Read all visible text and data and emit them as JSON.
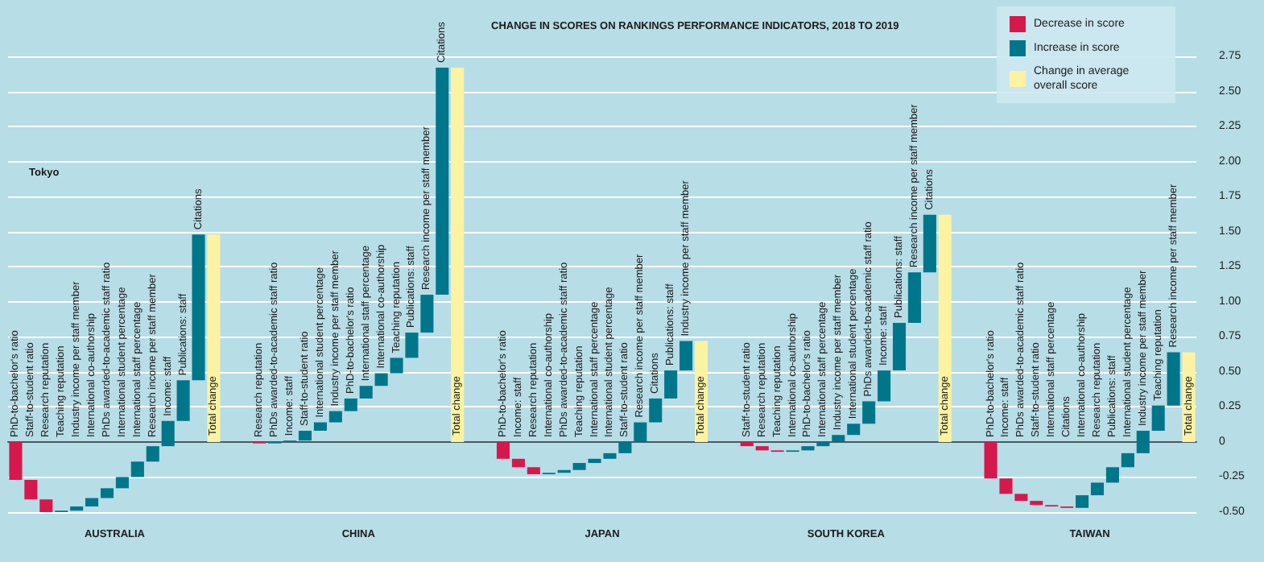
{
  "chart_data": {
    "type": "bar",
    "title": "CHANGE IN SCORES ON RANKINGS PERFORMANCE INDICATORS, 2018 TO 2019",
    "categories": [
      "PhD-to-bachelor's ratio",
      "Staff-to-student ratio",
      "Research reputation",
      "Teaching reputation",
      "Industry income per staff member",
      "International co-authorship",
      "PhDs awarded-to-academic staff ratio",
      "International student percentage",
      "International staff percentage",
      "Research income per staff member",
      "Income: staff",
      "Publications: staff",
      "Citations",
      "Total change",
      null,
      null,
      "Research reputation",
      "PhDs awarded-to-academic staff ratio",
      "Income: staff",
      "Staff-to-student ratio",
      "International student percentage",
      "Industry income per staff member",
      "PhD-to-bachelor's ratio",
      "International staff percentage",
      "International co-authorship",
      "Teaching reputation",
      "Publications: staff",
      "Research income per staff member",
      "Citations",
      "Total change",
      null,
      null,
      "PhD-to-bachelor's ratio",
      "Income: staff",
      "Research reputation",
      "International co-authorship",
      "PhDs awarded-to-academic staff ratio",
      "Teaching reputation",
      "International staff percentage",
      "International student percentage",
      "Staff-to-student ratio",
      "Research income per staff member",
      "Citations",
      "Publications: staff",
      "Industry income per staff member",
      "Total change",
      null,
      null,
      "Staff-to-student ratio",
      "Research reputation",
      "Teaching reputation",
      "International co-authorship",
      "PhD-to-bachelor's ratio",
      "International staff percentage",
      "Industry income per staff member",
      "International student percentage",
      "PhDs awarded-to-academic staff ratio",
      "Income: staff",
      "Publications: staff",
      "Research income per staff member",
      "Citations",
      "Total change",
      null,
      null,
      "PhD-to-bachelor's ratio",
      "Income: staff",
      "PhDs awarded-to-academic staff ratio",
      "Staff-to-student ratio",
      "International staff percentage",
      "Citations",
      "International co-authorship",
      "Research reputation",
      "Publications: staff",
      "International student percentage",
      "Industry income per staff member",
      "Teaching reputation",
      "Research income per staff member",
      "Total change"
    ],
    "series": [
      {
        "name": "Decrease in score",
        "color": "#d7184c",
        "base": [
          0,
          -0.27,
          -0.41,
          null,
          null,
          null,
          null,
          null,
          null,
          null,
          null,
          null,
          null,
          null,
          null,
          null,
          0,
          null,
          null,
          null,
          null,
          null,
          null,
          null,
          null,
          null,
          null,
          null,
          null,
          null,
          null,
          null,
          0,
          -0.12,
          -0.18,
          null,
          null,
          null,
          null,
          null,
          null,
          null,
          null,
          null,
          null,
          null,
          null,
          null,
          0,
          -0.03,
          -0.06,
          null,
          null,
          null,
          null,
          null,
          null,
          null,
          null,
          null,
          null,
          null,
          null,
          null,
          0,
          -0.26,
          -0.37,
          -0.42,
          -0.45,
          -0.46,
          null,
          null,
          null,
          null,
          null,
          null,
          null,
          null
        ],
        "values": [
          -0.27,
          -0.14,
          -0.09,
          null,
          null,
          null,
          null,
          null,
          null,
          null,
          null,
          null,
          null,
          null,
          null,
          null,
          -0.01,
          null,
          null,
          null,
          null,
          null,
          null,
          null,
          null,
          null,
          null,
          null,
          null,
          null,
          null,
          null,
          -0.12,
          -0.06,
          -0.05,
          null,
          null,
          null,
          null,
          null,
          null,
          null,
          null,
          null,
          null,
          null,
          null,
          null,
          -0.03,
          -0.03,
          -0.01,
          null,
          null,
          null,
          null,
          null,
          null,
          null,
          null,
          null,
          null,
          null,
          null,
          null,
          -0.26,
          -0.11,
          -0.05,
          -0.03,
          -0.01,
          -0.01,
          null,
          null,
          null,
          null,
          null,
          null,
          null,
          null
        ]
      },
      {
        "name": "Increase in score",
        "color": "#00768a",
        "base": [
          null,
          null,
          null,
          -0.5,
          -0.49,
          -0.46,
          -0.4,
          -0.33,
          -0.25,
          -0.14,
          -0.03,
          0.15,
          0.44,
          null,
          null,
          null,
          null,
          -0.01,
          0,
          0.01,
          0.08,
          0.14,
          0.22,
          0.31,
          0.4,
          0.49,
          0.6,
          0.78,
          1.05,
          null,
          null,
          null,
          null,
          null,
          null,
          -0.23,
          -0.22,
          -0.2,
          -0.15,
          -0.12,
          -0.08,
          0,
          0.14,
          0.31,
          0.51,
          null,
          null,
          null,
          null,
          null,
          null,
          -0.07,
          -0.06,
          -0.03,
          0,
          0.05,
          0.13,
          0.29,
          0.51,
          0.85,
          1.21,
          null,
          null,
          null,
          null,
          null,
          null,
          null,
          null,
          null,
          -0.47,
          -0.38,
          -0.29,
          -0.18,
          -0.08,
          0.08,
          0.26,
          null
        ],
        "values": [
          null,
          null,
          null,
          0.01,
          0.03,
          0.06,
          0.07,
          0.08,
          0.11,
          0.11,
          0.18,
          0.29,
          1.04,
          null,
          null,
          null,
          null,
          0.01,
          0.01,
          0.07,
          0.06,
          0.08,
          0.09,
          0.09,
          0.09,
          0.11,
          0.18,
          0.27,
          1.62,
          null,
          null,
          null,
          null,
          null,
          null,
          0.01,
          0.02,
          0.05,
          0.03,
          0.04,
          0.08,
          0.14,
          0.17,
          0.2,
          0.21,
          null,
          null,
          null,
          null,
          null,
          null,
          0.01,
          0.03,
          0.03,
          0.05,
          0.08,
          0.16,
          0.22,
          0.34,
          0.36,
          0.41,
          null,
          null,
          null,
          null,
          null,
          null,
          null,
          null,
          null,
          0.09,
          0.09,
          0.11,
          0.1,
          0.16,
          0.18,
          0.38,
          null
        ]
      },
      {
        "name": "Change in average overall score",
        "color": "#fbf3a2",
        "base": [
          null,
          null,
          null,
          null,
          null,
          null,
          null,
          null,
          null,
          null,
          null,
          null,
          null,
          0,
          null,
          null,
          null,
          null,
          null,
          null,
          null,
          null,
          null,
          null,
          null,
          null,
          null,
          null,
          null,
          0,
          null,
          null,
          null,
          null,
          null,
          null,
          null,
          null,
          null,
          null,
          null,
          null,
          null,
          null,
          null,
          0,
          null,
          null,
          null,
          null,
          null,
          null,
          null,
          null,
          null,
          null,
          null,
          null,
          null,
          null,
          null,
          0,
          null,
          null,
          null,
          null,
          null,
          null,
          null,
          null,
          null,
          null,
          null,
          null,
          null,
          null,
          null,
          0
        ],
        "values": [
          null,
          null,
          null,
          null,
          null,
          null,
          null,
          null,
          null,
          null,
          null,
          null,
          null,
          1.48,
          null,
          null,
          null,
          null,
          null,
          null,
          null,
          null,
          null,
          null,
          null,
          null,
          null,
          null,
          null,
          2.67,
          null,
          null,
          null,
          null,
          null,
          null,
          null,
          null,
          null,
          null,
          null,
          null,
          null,
          null,
          null,
          0.72,
          null,
          null,
          null,
          null,
          null,
          null,
          null,
          null,
          null,
          null,
          null,
          null,
          null,
          null,
          null,
          1.62,
          null,
          null,
          null,
          null,
          null,
          null,
          null,
          null,
          null,
          null,
          null,
          null,
          null,
          null,
          null,
          0.64
        ]
      }
    ],
    "ylim": [
      -0.5,
      2.75
    ],
    "yticks": [
      {
        "value": -0.5,
        "label": "-0.50"
      },
      {
        "value": -0.25,
        "label": "-0.25"
      },
      0,
      {
        "value": 0.25,
        "label": "0.25"
      },
      {
        "value": 0.5,
        "label": "0.50"
      },
      {
        "value": 0.75,
        "label": "0.75"
      },
      {
        "value": 1,
        "label": "1.00"
      },
      {
        "value": 1.25,
        "label": "1.25"
      },
      {
        "value": 1.5,
        "label": "1.50"
      },
      {
        "value": 1.75,
        "label": "1.75"
      },
      {
        "value": 2,
        "label": "2.00"
      },
      {
        "value": 2.25,
        "label": "2.25"
      },
      {
        "value": 2.5,
        "label": "2.50"
      },
      {
        "value": 2.75,
        "label": "2.75"
      }
    ],
    "grid": "y",
    "legend": "top right",
    "annotations": [
      "Tokyo",
      "AUSTRALIA",
      "CHINA",
      "JAPAN",
      "SOUTH KOREA",
      "TAIWAN"
    ]
  }
}
